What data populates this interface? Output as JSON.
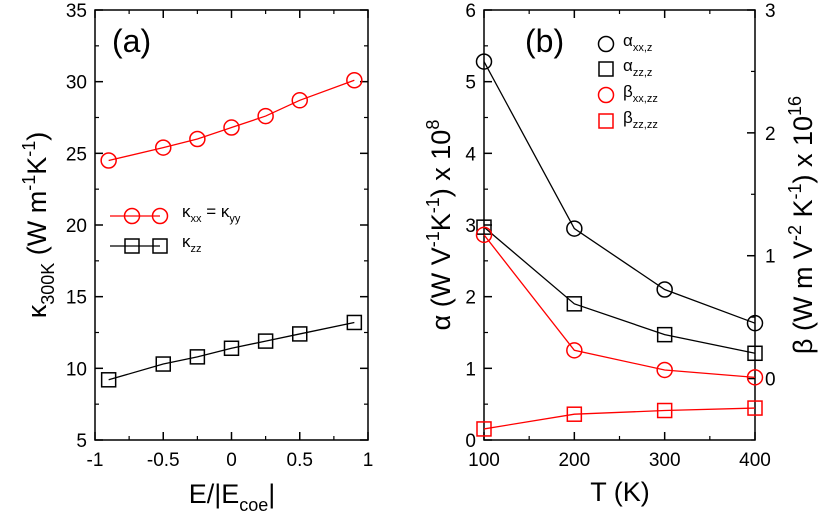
{
  "chart_data": [
    {
      "type": "line",
      "panel_label": "(a)",
      "xlabel_parts": [
        "E/|E",
        "coe",
        "|"
      ],
      "ylabel_parts": [
        "κ",
        "300K",
        " (W m",
        "-1",
        "K",
        "-1",
        ")"
      ],
      "xlim": [
        -1,
        1
      ],
      "ylim": [
        5,
        35
      ],
      "xticks": [
        -1,
        -0.5,
        0,
        0.5,
        1
      ],
      "xtick_labels": [
        "-1",
        "-0.5",
        "0",
        "0.5",
        "1"
      ],
      "yticks": [
        5,
        10,
        15,
        20,
        25,
        30,
        35
      ],
      "ytick_labels": [
        "5",
        "10",
        "15",
        "20",
        "25",
        "30",
        "35"
      ],
      "grid": false,
      "legend_position": "center-left",
      "x": [
        -0.9,
        -0.5,
        -0.25,
        0,
        0.25,
        0.5,
        0.9
      ],
      "series": [
        {
          "legend_parts": [
            "κ",
            "xx",
            " = κ",
            "yy"
          ],
          "marker": "circle",
          "color": "#ff0000",
          "values": [
            24.5,
            25.4,
            26.0,
            26.8,
            27.6,
            28.7,
            30.1
          ]
        },
        {
          "legend_parts": [
            "κ",
            "zz"
          ],
          "marker": "square",
          "color": "#000000",
          "values": [
            9.2,
            10.3,
            10.8,
            11.4,
            11.9,
            12.4,
            13.2
          ]
        }
      ]
    },
    {
      "type": "line",
      "panel_label": "(b)",
      "xlabel": "T (K)",
      "ylabel_parts": [
        "α (W V",
        "-1",
        "K",
        "-1",
        ") x 10",
        "8"
      ],
      "y2label_parts": [
        "β (W m V",
        "-2",
        " K",
        "-1",
        ") x 10",
        "16"
      ],
      "xlim": [
        100,
        400
      ],
      "ylim": [
        0,
        6
      ],
      "y2lim": [
        -0.5,
        3
      ],
      "xticks": [
        100,
        200,
        300,
        400
      ],
      "xtick_labels": [
        "100",
        "200",
        "300",
        "400"
      ],
      "yticks": [
        0,
        1,
        2,
        3,
        4,
        5,
        6
      ],
      "ytick_labels": [
        "0",
        "1",
        "2",
        "3",
        "4",
        "5",
        "6"
      ],
      "y2ticks": [
        0,
        1,
        2,
        3
      ],
      "y2tick_labels": [
        "0",
        "1",
        "2",
        "3"
      ],
      "grid": false,
      "legend_position": "top-right",
      "x": [
        100,
        200,
        300,
        400
      ],
      "series": [
        {
          "legend_parts": [
            "α",
            "xx,z"
          ],
          "marker": "circle",
          "color": "#000000",
          "axis": "left",
          "values": [
            5.28,
            2.95,
            2.1,
            1.63
          ]
        },
        {
          "legend_parts": [
            "α",
            "zz,z"
          ],
          "marker": "square",
          "color": "#000000",
          "axis": "left",
          "values": [
            2.97,
            1.9,
            1.47,
            1.21
          ]
        },
        {
          "legend_parts": [
            "β",
            "xx,zz"
          ],
          "marker": "circle",
          "color": "#ff0000",
          "axis": "right",
          "values": [
            1.17,
            0.23,
            0.07,
            0.01
          ]
        },
        {
          "legend_parts": [
            "β",
            "zz,zz"
          ],
          "marker": "square",
          "color": "#ff0000",
          "axis": "right",
          "values": [
            -0.41,
            -0.29,
            -0.26,
            -0.24
          ]
        }
      ]
    }
  ]
}
